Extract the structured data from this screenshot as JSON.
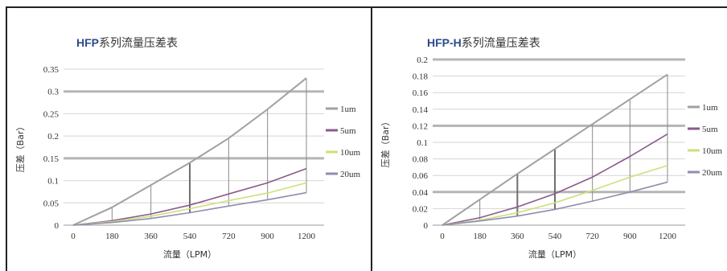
{
  "chart_data": [
    {
      "type": "line",
      "title_brand": "HFP",
      "title_rest": "系列流量压差表",
      "xlabel": "流量（LPM）",
      "ylabel": "压差（Bar）",
      "categories": [
        "0",
        "180",
        "360",
        "540",
        "720",
        "900",
        "1200"
      ],
      "ylim": [
        0,
        0.35
      ],
      "yticks": [
        "0",
        "0.05",
        "0.1",
        "0.15",
        "0.2",
        "0.25",
        "0.3",
        "0.35"
      ],
      "legend_position": "right",
      "series": [
        {
          "name": "1um",
          "color": "#a0a0a6",
          "values": [
            0,
            0.04,
            0.09,
            0.14,
            0.195,
            0.26,
            0.33
          ]
        },
        {
          "name": "5um",
          "color": "#8a5a8c",
          "values": [
            0,
            0.01,
            0.025,
            0.045,
            0.07,
            0.095,
            0.127
          ]
        },
        {
          "name": "10um",
          "color": "#cce07a",
          "values": [
            0,
            0.008,
            0.02,
            0.037,
            0.055,
            0.072,
            0.095
          ]
        },
        {
          "name": "20um",
          "color": "#8e8eae",
          "values": [
            0,
            0.006,
            0.015,
            0.028,
            0.043,
            0.057,
            0.073
          ]
        }
      ]
    },
    {
      "type": "line",
      "title_brand": "HFP-H",
      "title_rest": "系列流量压差表",
      "xlabel": "流量（LPM）",
      "ylabel": "压差（Bar）",
      "categories": [
        "0",
        "180",
        "360",
        "540",
        "720",
        "900",
        "1200"
      ],
      "ylim": [
        0,
        0.2
      ],
      "yticks": [
        "0",
        "0.02",
        "0.04",
        "0.06",
        "0.08",
        "0.1",
        "0.12",
        "0.14",
        "0.16",
        "0.18",
        "0.2"
      ],
      "legend_position": "right",
      "series": [
        {
          "name": "1um",
          "color": "#a0a0a6",
          "values": [
            0,
            0.031,
            0.062,
            0.092,
            0.122,
            0.152,
            0.182
          ]
        },
        {
          "name": "5um",
          "color": "#8a5a8c",
          "values": [
            0,
            0.009,
            0.022,
            0.038,
            0.058,
            0.083,
            0.11
          ]
        },
        {
          "name": "10um",
          "color": "#cce07a",
          "values": [
            0,
            0.006,
            0.015,
            0.027,
            0.042,
            0.058,
            0.072
          ]
        },
        {
          "name": "20um",
          "color": "#8e8eae",
          "values": [
            0,
            0.005,
            0.011,
            0.019,
            0.029,
            0.04,
            0.052
          ]
        }
      ]
    }
  ]
}
